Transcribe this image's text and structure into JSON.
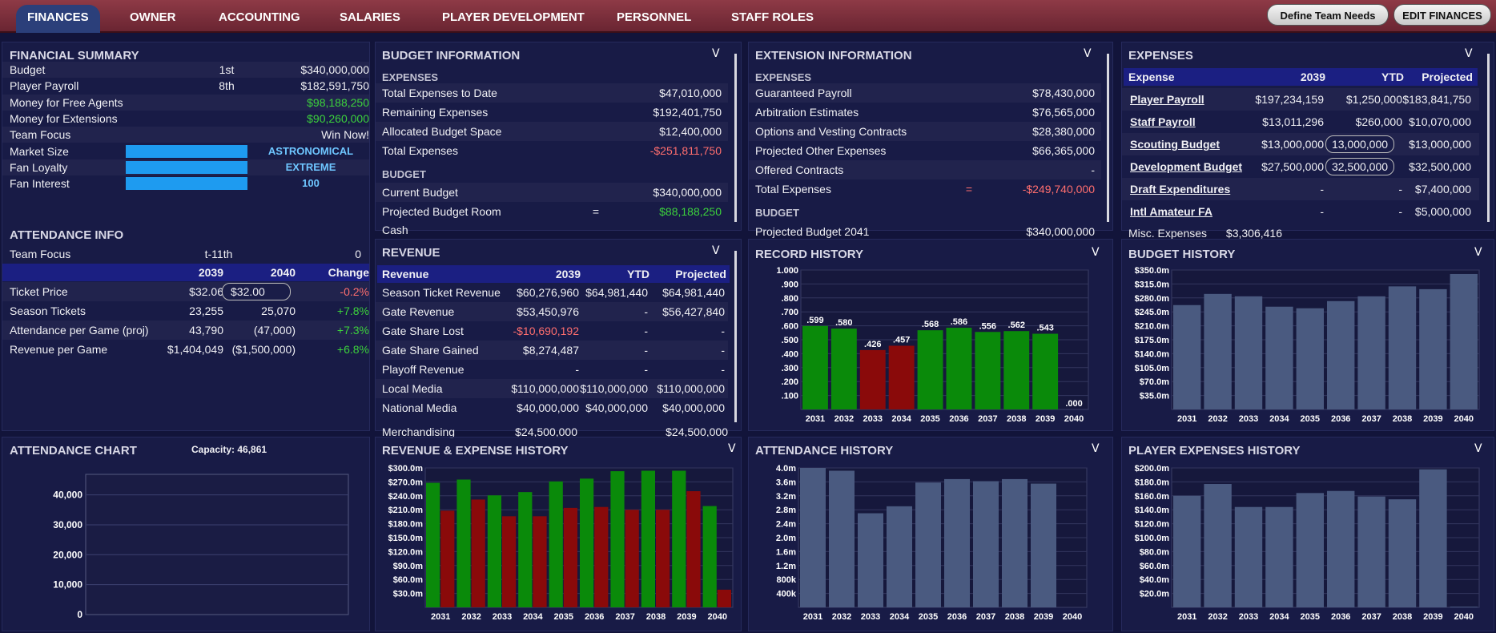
{
  "nav": {
    "tabs": [
      "FINANCES",
      "OWNER",
      "ACCOUNTING",
      "SALARIES",
      "PLAYER DEVELOPMENT",
      "PERSONNEL",
      "STAFF ROLES"
    ],
    "define_needs": "Define Team Needs",
    "edit_finances": "EDIT FINANCES"
  },
  "summary": {
    "title": "FINANCIAL SUMMARY",
    "rows": [
      {
        "label": "Budget",
        "rank": "1st",
        "value": "$340,000,000"
      },
      {
        "label": "Player Payroll",
        "rank": "8th",
        "value": "$182,591,750"
      },
      {
        "label": "Money for Free Agents",
        "rank": "",
        "value": "$98,188,250"
      },
      {
        "label": "Money for Extensions",
        "rank": "",
        "value": "$90,260,000"
      },
      {
        "label": "Team Focus",
        "rank": "",
        "value": "Win Now!"
      }
    ],
    "meters": [
      {
        "label": "Market Size",
        "value": "ASTRONOMICAL",
        "level": 1.0
      },
      {
        "label": "Fan Loyalty",
        "value": "EXTREME",
        "level": 1.0
      },
      {
        "label": "Fan Interest",
        "value": "100",
        "level": 1.0
      }
    ]
  },
  "attendance_info": {
    "title": "ATTENDANCE INFO",
    "team_focus_label": "Team Focus",
    "team_focus_mid": "t-11th",
    "team_focus_val": "0",
    "headers": [
      "2039",
      "2040",
      "Change"
    ],
    "rows": [
      {
        "label": "Ticket Price",
        "a": "$32.06",
        "b": "$32.00",
        "c": "-0.2%"
      },
      {
        "label": "Season Tickets",
        "a": "23,255",
        "b": "25,070",
        "c": "+7.8%"
      },
      {
        "label": "Attendance per Game (proj)",
        "a": "43,790",
        "b": "(47,000)",
        "c": "+7.3%"
      },
      {
        "label": "Revenue per Game",
        "a": "$1,404,049",
        "b": "($1,500,000)",
        "c": "+6.8%"
      }
    ]
  },
  "budget": {
    "title": "BUDGET INFORMATION",
    "chevron": "V",
    "sub1": "EXPENSES",
    "sub2": "BUDGET",
    "rows1": [
      {
        "label": "Total Expenses to Date",
        "value": "$47,010,000"
      },
      {
        "label": "Remaining Expenses",
        "value": "$192,401,750"
      },
      {
        "label": "Allocated Budget Space",
        "value": "$12,400,000"
      },
      {
        "label": "Total Expenses",
        "value": "-$251,811,750"
      }
    ],
    "rows2": [
      {
        "label": "Current Budget",
        "mid": "",
        "value": "$340,000,000"
      },
      {
        "label": "Projected Budget Room",
        "mid": "=",
        "value": "$88,188,250"
      }
    ],
    "cut": "Cash"
  },
  "extension": {
    "title": "EXTENSION INFORMATION",
    "chevron": "V",
    "sub1": "EXPENSES",
    "sub2": "BUDGET",
    "rows": [
      {
        "label": "Guaranteed Payroll",
        "mid": "",
        "value": "$78,430,000"
      },
      {
        "label": "Arbitration Estimates",
        "mid": "",
        "value": "$76,565,000"
      },
      {
        "label": "Options and Vesting Contracts",
        "mid": "",
        "value": "$28,380,000"
      },
      {
        "label": "Projected Other Expenses",
        "mid": "",
        "value": "$66,365,000"
      },
      {
        "label": "Offered Contracts",
        "mid": "",
        "value": "-"
      },
      {
        "label": "Total Expenses",
        "mid": "=",
        "value": "-$249,740,000"
      }
    ],
    "cut": "Projected Budget 2041",
    "cut_value": "$340,000,000"
  },
  "expenses": {
    "title": "EXPENSES",
    "chevron": "V",
    "headers": [
      "Expense",
      "2039",
      "YTD",
      "Projected"
    ],
    "rows": [
      {
        "label": "Player Payroll",
        "a": "$197,234,159",
        "b": "$1,250,000",
        "c": "$183,841,750",
        "pill": false
      },
      {
        "label": "Staff Payroll",
        "a": "$13,011,296",
        "b": "$260,000",
        "c": "$10,070,000",
        "pill": false
      },
      {
        "label": "Scouting Budget",
        "a": "$13,000,000",
        "b": "13,000,000",
        "c": "$13,000,000",
        "pill": true
      },
      {
        "label": "Development Budget",
        "a": "$27,500,000",
        "b": "32,500,000",
        "c": "$32,500,000",
        "pill": true
      },
      {
        "label": "Draft Expenditures",
        "a": "-",
        "b": "-",
        "c": "$7,400,000",
        "pill": false
      },
      {
        "label": "Intl Amateur FA",
        "a": "-",
        "b": "-",
        "c": "$5,000,000",
        "pill": false
      }
    ],
    "cut": "Misc. Expenses",
    "cut_value": "$3,306,416"
  },
  "revenue": {
    "title": "REVENUE",
    "chevron": "V",
    "headers": [
      "Revenue",
      "2039",
      "YTD",
      "Projected"
    ],
    "rows": [
      {
        "label": "Season Ticket Revenue",
        "a": "$60,276,960",
        "b": "$64,981,440",
        "c": "$64,981,440"
      },
      {
        "label": "Gate Revenue",
        "a": "$53,450,976",
        "b": "-",
        "c": "$56,427,840"
      },
      {
        "label": "Gate Share Lost",
        "a": "-$10,690,192",
        "b": "-",
        "c": "-"
      },
      {
        "label": "Gate Share Gained",
        "a": "$8,274,487",
        "b": "-",
        "c": "-"
      },
      {
        "label": "Playoff Revenue",
        "a": "-",
        "b": "-",
        "c": "-"
      },
      {
        "label": "Local Media",
        "a": "$110,000,000",
        "b": "$110,000,000",
        "c": "$110,000,000"
      },
      {
        "label": "National Media",
        "a": "$40,000,000",
        "b": "$40,000,000",
        "c": "$40,000,000"
      }
    ],
    "cut": "Merchandising",
    "cut_a": "$24,500,000",
    "cut_c": "$24,500,000"
  },
  "record_history": {
    "title": "RECORD HISTORY",
    "chevron": "V"
  },
  "budget_history": {
    "title": "BUDGET HISTORY",
    "chevron": "V"
  },
  "attendance_chart": {
    "title": "ATTENDANCE CHART",
    "capacity": "Capacity: 46,861"
  },
  "rev_exp_history": {
    "title": "REVENUE & EXPENSE HISTORY",
    "chevron": "V"
  },
  "attendance_history": {
    "title": "ATTENDANCE HISTORY",
    "chevron": "V"
  },
  "player_expenses_history": {
    "title": "PLAYER EXPENSES HISTORY",
    "chevron": "V"
  },
  "colors": {
    "green": "#0a8a0a",
    "red": "#8a0a0a",
    "slate": "#4a5a80",
    "meter": "#1e9bf0"
  },
  "chart_data": [
    {
      "type": "bar",
      "title": "RECORD HISTORY",
      "categories": [
        "2031",
        "2032",
        "2033",
        "2034",
        "2035",
        "2036",
        "2037",
        "2038",
        "2039",
        "2040"
      ],
      "values": [
        0.599,
        0.58,
        0.426,
        0.457,
        0.568,
        0.586,
        0.556,
        0.562,
        0.543,
        0.0
      ],
      "labels": [
        ".599",
        ".580",
        ".426",
        ".457",
        ".568",
        ".586",
        ".556",
        ".562",
        ".543",
        ".000"
      ],
      "ylim": [
        0,
        1.0
      ],
      "yticks": [
        ".100",
        ".200",
        ".300",
        ".400",
        ".500",
        ".600",
        ".700",
        ".800",
        ".900",
        "1.000"
      ]
    },
    {
      "type": "bar",
      "title": "BUDGET HISTORY",
      "categories": [
        "2031",
        "2032",
        "2033",
        "2034",
        "2035",
        "2036",
        "2037",
        "2038",
        "2039",
        "2040"
      ],
      "values": [
        262,
        290,
        284,
        258,
        254,
        272,
        284,
        309,
        302,
        340
      ],
      "ylim": [
        0,
        350
      ],
      "yticks": [
        "$35.0m",
        "$70.0m",
        "$105.0m",
        "$140.0m",
        "$175.0m",
        "$210.0m",
        "$245.0m",
        "$280.0m",
        "$315.0m",
        "$350.0m"
      ]
    },
    {
      "type": "line",
      "title": "ATTENDANCE CHART",
      "ylim": [
        0,
        46861
      ],
      "yticks": [
        "0",
        "10,000",
        "20,000",
        "30,000",
        "40,000"
      ]
    },
    {
      "type": "bar",
      "title": "REVENUE & EXPENSE HISTORY",
      "categories": [
        "2031",
        "2032",
        "2033",
        "2034",
        "2035",
        "2036",
        "2037",
        "2038",
        "2039",
        "2040"
      ],
      "series": [
        {
          "name": "Revenue",
          "values": [
            268,
            275,
            241,
            248,
            271,
            277,
            293,
            294,
            294,
            218
          ]
        },
        {
          "name": "Expenses",
          "values": [
            208,
            232,
            196,
            196,
            214,
            216,
            210,
            210,
            250,
            38
          ]
        }
      ],
      "ylim": [
        0,
        300
      ],
      "yticks": [
        "$30.0m",
        "$60.0m",
        "$90.0m",
        "$120.0m",
        "$150.0m",
        "$180.0m",
        "$210.0m",
        "$240.0m",
        "$270.0m",
        "$300.0m"
      ]
    },
    {
      "type": "bar",
      "title": "ATTENDANCE HISTORY",
      "categories": [
        "2031",
        "2032",
        "2033",
        "2034",
        "2035",
        "2036",
        "2037",
        "2038",
        "2039",
        "2040"
      ],
      "values": [
        4.0,
        3.92,
        2.7,
        2.9,
        3.58,
        3.68,
        3.62,
        3.68,
        3.55,
        0
      ],
      "ylim": [
        0,
        4.0
      ],
      "yticks": [
        "400k",
        "800k",
        "1.2m",
        "1.6m",
        "2.0m",
        "2.4m",
        "2.8m",
        "3.2m",
        "3.6m",
        "4.0m"
      ]
    },
    {
      "type": "bar",
      "title": "PLAYER EXPENSES HISTORY",
      "categories": [
        "2031",
        "2032",
        "2033",
        "2034",
        "2035",
        "2036",
        "2037",
        "2038",
        "2039",
        "2040"
      ],
      "values": [
        160,
        177,
        144,
        144,
        164,
        167,
        159,
        155,
        198,
        1
      ],
      "ylim": [
        0,
        200
      ],
      "yticks": [
        "$20.0m",
        "$40.0m",
        "$60.0m",
        "$80.0m",
        "$100.0m",
        "$120.0m",
        "$140.0m",
        "$160.0m",
        "$180.0m",
        "$200.0m"
      ]
    }
  ]
}
